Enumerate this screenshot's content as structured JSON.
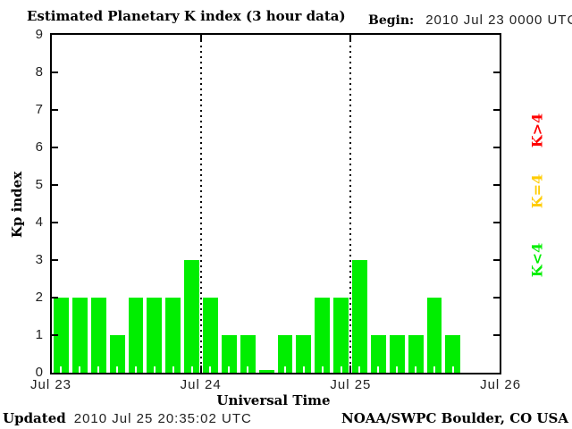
{
  "header": {
    "title": "Estimated Planetary K index (3 hour data)",
    "begin_label": "Begin:",
    "begin_value": "2010 Jul 23 0000 UTC"
  },
  "footer": {
    "updated_label": "Updated",
    "updated_value": "2010 Jul 25 20:35:02 UTC",
    "source": "NOAA/SWPC Boulder, CO USA"
  },
  "chart_data": {
    "type": "bar",
    "title": "Estimated Planetary K index (3 hour data)",
    "xlabel": "Universal Time",
    "ylabel": "Kp index",
    "ylim": [
      0,
      9
    ],
    "yticks": [
      0,
      1,
      2,
      3,
      4,
      5,
      6,
      7,
      8,
      9
    ],
    "day_labels": [
      "Jul 23",
      "Jul 24",
      "Jul 25",
      "Jul 26"
    ],
    "interval_hours": 3,
    "bars_per_day": 8,
    "slots_total": 24,
    "values": [
      2,
      2,
      2,
      1,
      2,
      2,
      2,
      3,
      2,
      1,
      1,
      0,
      1,
      1,
      2,
      2,
      3,
      1,
      1,
      1,
      2,
      1
    ],
    "bar_color": "#00ee00",
    "axis_color": "#000000",
    "background": "#ffffff",
    "day_boundary_lines": [
      1,
      2
    ],
    "grid": "dotted vertical lines at day boundaries, no horizontal grid",
    "legend_position": "right, rotated 90deg",
    "legend": [
      {
        "label": "K>4",
        "color": "#ff0000"
      },
      {
        "label": "K=4",
        "color": "#ffcc00"
      },
      {
        "label": "K<4",
        "color": "#00ee00"
      }
    ]
  }
}
